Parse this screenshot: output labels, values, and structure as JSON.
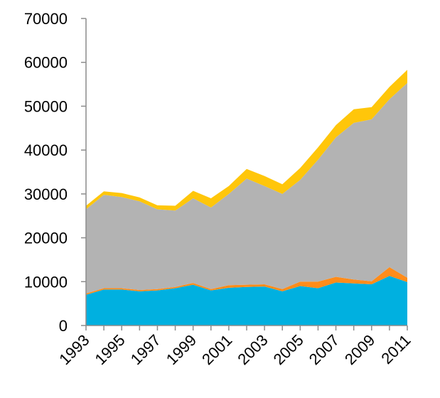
{
  "chart_data": {
    "type": "area",
    "stacked": true,
    "title": "",
    "xlabel": "",
    "ylabel": "",
    "ylim": [
      0,
      70000
    ],
    "yticks": [
      0,
      10000,
      20000,
      30000,
      40000,
      50000,
      60000,
      70000
    ],
    "x": [
      1993,
      1994,
      1995,
      1996,
      1997,
      1998,
      1999,
      2000,
      2001,
      2002,
      2003,
      2004,
      2005,
      2006,
      2007,
      2008,
      2009,
      2010,
      2011
    ],
    "xtick_labels": [
      "1993",
      "1995",
      "1997",
      "1999",
      "2001",
      "2003",
      "2005",
      "2007",
      "2009",
      "2011"
    ],
    "grid": false,
    "legend": "none",
    "series": [
      {
        "color": "#00B0E0",
        "values": [
          7000,
          8200,
          8200,
          7800,
          8000,
          8500,
          9300,
          8000,
          8600,
          8800,
          8900,
          7800,
          9000,
          8500,
          9800,
          9600,
          9400,
          11300,
          9900
        ]
      },
      {
        "color": "#FF8C1A",
        "values": [
          300,
          300,
          300,
          300,
          300,
          300,
          400,
          300,
          600,
          500,
          500,
          500,
          1000,
          1500,
          1300,
          900,
          700,
          2000,
          1000
        ]
      },
      {
        "color": "#B3B3B3",
        "values": [
          19200,
          21300,
          20800,
          20200,
          18200,
          17400,
          19300,
          18600,
          20800,
          24200,
          22400,
          21700,
          23200,
          27800,
          31800,
          35700,
          36900,
          38300,
          44400
        ]
      },
      {
        "color": "#FFC60A",
        "values": [
          800,
          800,
          900,
          900,
          900,
          1100,
          1700,
          2100,
          1800,
          2200,
          2300,
          2200,
          2700,
          2800,
          2800,
          3100,
          2800,
          2800,
          3000
        ]
      }
    ]
  }
}
